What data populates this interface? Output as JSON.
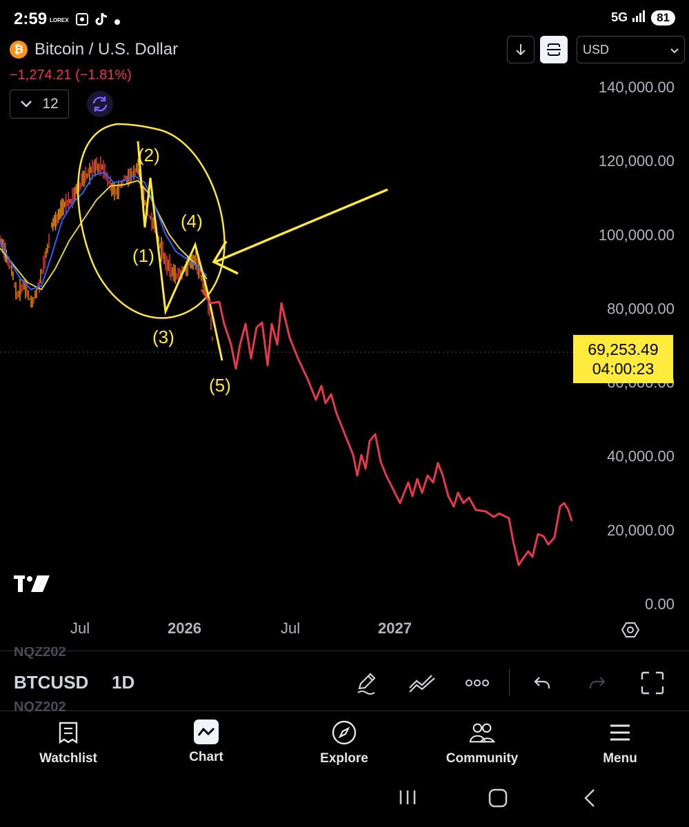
{
  "status_bar": {
    "time": "2:59",
    "app_icons": [
      "lorex-icon",
      "screenshot-icon",
      "tiktok-icon",
      "dot-icon"
    ],
    "lorex_text": "LOREX",
    "network": "5G",
    "battery": "81"
  },
  "header": {
    "title": "Bitcoin / U.S. Dollar",
    "change": "−1,274.21 (−1.81%)",
    "interval_value": "12",
    "currency": "USD"
  },
  "chart": {
    "price_tag": {
      "price": "69,253.49",
      "countdown": "04:00:23"
    },
    "annotations": [
      "(1)",
      "(2)",
      "(3)",
      "(4)",
      "(5)"
    ],
    "colors": {
      "candles_up": "#ff9800",
      "candles_down": "#f23645",
      "ma_fast": "#2962ff",
      "ma_slow": "#ffeb3b",
      "drawing": "#ffe83b",
      "projection": "#f23645"
    }
  },
  "chart_data": {
    "type": "line",
    "ylim": [
      0,
      140000
    ],
    "y_ticks": [
      "140,000.00",
      "120,000.00",
      "100,000.00",
      "80,000.00",
      "60,000.00",
      "40,000.00",
      "20,000.00",
      "0.00"
    ],
    "x_ticks": [
      "Jul",
      "2026",
      "Jul",
      "2027"
    ],
    "current_price": 69253.49
  },
  "toolbar": {
    "ghost_top": "NQZ202",
    "ticker": "BTCUSD",
    "timeframe": "1D",
    "ghost_bottom": "NQZ202"
  },
  "nav": {
    "items": [
      {
        "label": "Watchlist",
        "icon": "watchlist-icon"
      },
      {
        "label": "Chart",
        "icon": "chart-icon"
      },
      {
        "label": "Explore",
        "icon": "compass-icon"
      },
      {
        "label": "Community",
        "icon": "community-icon"
      },
      {
        "label": "Menu",
        "icon": "menu-icon"
      }
    ]
  }
}
